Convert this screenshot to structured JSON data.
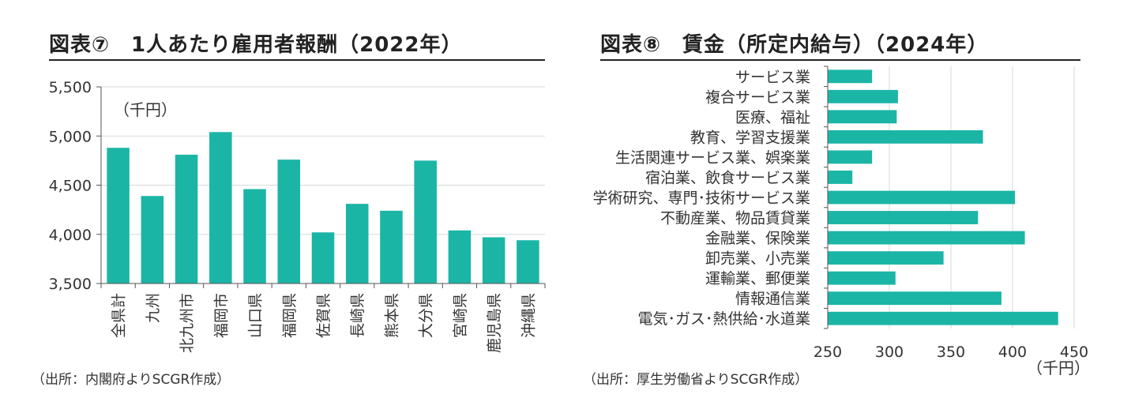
{
  "chart_data": [
    {
      "type": "bar",
      "title": "図表⑦　1人あたり雇用者報酬（2022年）",
      "unit_label": "（千円）",
      "source": "（出所：内閣府よりSCGR作成）",
      "categories": [
        "全県計",
        "九州",
        "北九州市",
        "福岡市",
        "山口県",
        "福岡県",
        "佐賀県",
        "長崎県",
        "熊本県",
        "大分県",
        "宮崎県",
        "鹿児島県",
        "沖縄県"
      ],
      "values": [
        4880,
        4390,
        4810,
        5040,
        4460,
        4760,
        4020,
        4310,
        4240,
        4750,
        4040,
        3970,
        3940
      ],
      "ylim": [
        3500,
        5500
      ],
      "yticks": [
        "3,500",
        "4,000",
        "4,500",
        "5,000",
        "5,500"
      ],
      "grid": true,
      "bar_color": "#1bb5a6"
    },
    {
      "type": "bar",
      "orientation": "horizontal",
      "title": "図表⑧　賃金（所定内給与）（2024年）",
      "unit_label": "（千円）",
      "source": "（出所：厚生労働省よりSCGR作成）",
      "categories": [
        "サービス業",
        "複合サービス業",
        "医療、福祉",
        "教育、学習支援業",
        "生活関連サービス業、娯楽業",
        "宿泊業、飲食サービス業",
        "学術研究、専門･技術サービス業",
        "不動産業、物品賃貸業",
        "金融業、保険業",
        "卸売業、小売業",
        "運輸業、郵便業",
        "情報通信業",
        "電気･ガス･熱供給･水道業"
      ],
      "values": [
        286,
        307,
        306,
        376,
        286,
        270,
        402,
        372,
        410,
        344,
        305,
        391,
        437
      ],
      "xlim": [
        250,
        450
      ],
      "xticks": [
        "250",
        "300",
        "350",
        "400",
        "450"
      ],
      "grid": true,
      "bar_color": "#1bb5a6"
    }
  ]
}
